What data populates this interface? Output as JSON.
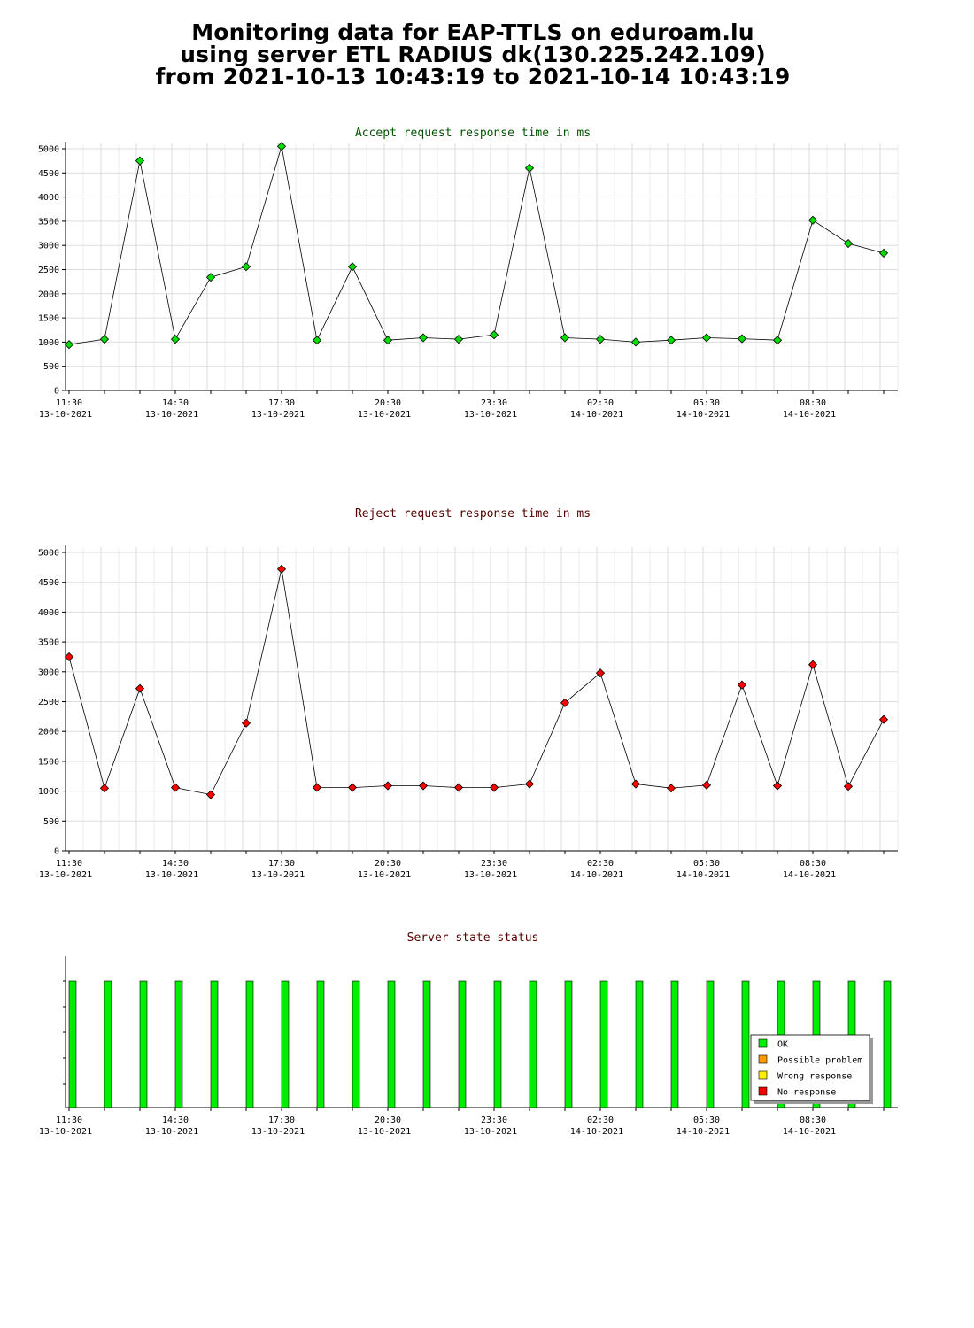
{
  "page": {
    "title_lines": [
      "Monitoring data for EAP-TTLS on eduroam.lu",
      "using server ETL RADIUS dk(130.225.242.109)",
      "from 2021-10-13 10:43:19 to 2021-10-14 10:43:19"
    ]
  },
  "colors": {
    "accept_series": "#00dd00",
    "reject_series": "#ff0000",
    "accept_title": "#005500",
    "reject_title": "#550000",
    "status_title": "#550000",
    "grid": "#dddddd",
    "ok": "#00ee00",
    "possible_problem": "#ff9900",
    "wrong_response": "#ffee00",
    "no_response": "#ee0000"
  },
  "chart_data": [
    {
      "type": "line",
      "title": "Accept request response time in ms",
      "xlabel": "",
      "ylabel": "",
      "ylim": [
        0,
        5000
      ],
      "yticks": [
        0,
        500,
        1000,
        1500,
        2000,
        2500,
        3000,
        3500,
        4000,
        4500,
        5000
      ],
      "x_tick_labels": [
        {
          "time": "11:30",
          "date": "13-10-2021"
        },
        {
          "time": "14:30",
          "date": "13-10-2021"
        },
        {
          "time": "17:30",
          "date": "13-10-2021"
        },
        {
          "time": "20:30",
          "date": "13-10-2021"
        },
        {
          "time": "23:30",
          "date": "13-10-2021"
        },
        {
          "time": "02:30",
          "date": "14-10-2021"
        },
        {
          "time": "05:30",
          "date": "14-10-2021"
        },
        {
          "time": "08:30",
          "date": "14-10-2021"
        }
      ],
      "grid": true,
      "series": [
        {
          "values": [
            950,
            1060,
            4750,
            1060,
            2340,
            2560,
            5050,
            1040,
            2560,
            1040,
            1090,
            1060,
            1150,
            4600,
            1090,
            1060,
            1000,
            1040,
            1090,
            1070,
            1040,
            3520,
            3040,
            2840
          ]
        }
      ]
    },
    {
      "type": "line",
      "title": "Reject request response time in ms",
      "xlabel": "",
      "ylabel": "",
      "ylim": [
        0,
        5000
      ],
      "yticks": [
        0,
        500,
        1000,
        1500,
        2000,
        2500,
        3000,
        3500,
        4000,
        4500,
        5000
      ],
      "x_tick_labels": [
        {
          "time": "11:30",
          "date": "13-10-2021"
        },
        {
          "time": "14:30",
          "date": "13-10-2021"
        },
        {
          "time": "17:30",
          "date": "13-10-2021"
        },
        {
          "time": "20:30",
          "date": "13-10-2021"
        },
        {
          "time": "23:30",
          "date": "13-10-2021"
        },
        {
          "time": "02:30",
          "date": "14-10-2021"
        },
        {
          "time": "05:30",
          "date": "14-10-2021"
        },
        {
          "time": "08:30",
          "date": "14-10-2021"
        }
      ],
      "grid": true,
      "series": [
        {
          "values": [
            3250,
            1050,
            2720,
            1060,
            940,
            2140,
            4720,
            1060,
            1060,
            1090,
            1090,
            1060,
            1060,
            1120,
            2480,
            2980,
            1120,
            1050,
            1100,
            2780,
            1090,
            3120,
            1080,
            2200
          ]
        }
      ]
    },
    {
      "type": "bar",
      "title": "Server state status",
      "xlabel": "",
      "ylabel": "",
      "grid": false,
      "legend_placement": "bottom-right",
      "x_tick_labels": [
        {
          "time": "11:30",
          "date": "13-10-2021"
        },
        {
          "time": "14:30",
          "date": "13-10-2021"
        },
        {
          "time": "17:30",
          "date": "13-10-2021"
        },
        {
          "time": "20:30",
          "date": "13-10-2021"
        },
        {
          "time": "23:30",
          "date": "13-10-2021"
        },
        {
          "time": "02:30",
          "date": "14-10-2021"
        },
        {
          "time": "05:30",
          "date": "14-10-2021"
        },
        {
          "time": "08:30",
          "date": "14-10-2021"
        }
      ],
      "legend": [
        {
          "label": "OK",
          "color": "#00ee00"
        },
        {
          "label": "Possible problem",
          "color": "#ff9900"
        },
        {
          "label": "Wrong response",
          "color": "#ffee00"
        },
        {
          "label": "No response",
          "color": "#ee0000"
        }
      ],
      "states": [
        "OK",
        "OK",
        "OK",
        "OK",
        "OK",
        "OK",
        "OK",
        "OK",
        "OK",
        "OK",
        "OK",
        "OK",
        "OK",
        "OK",
        "OK",
        "OK",
        "OK",
        "OK",
        "OK",
        "OK",
        "OK",
        "OK",
        "OK",
        "OK"
      ]
    }
  ]
}
